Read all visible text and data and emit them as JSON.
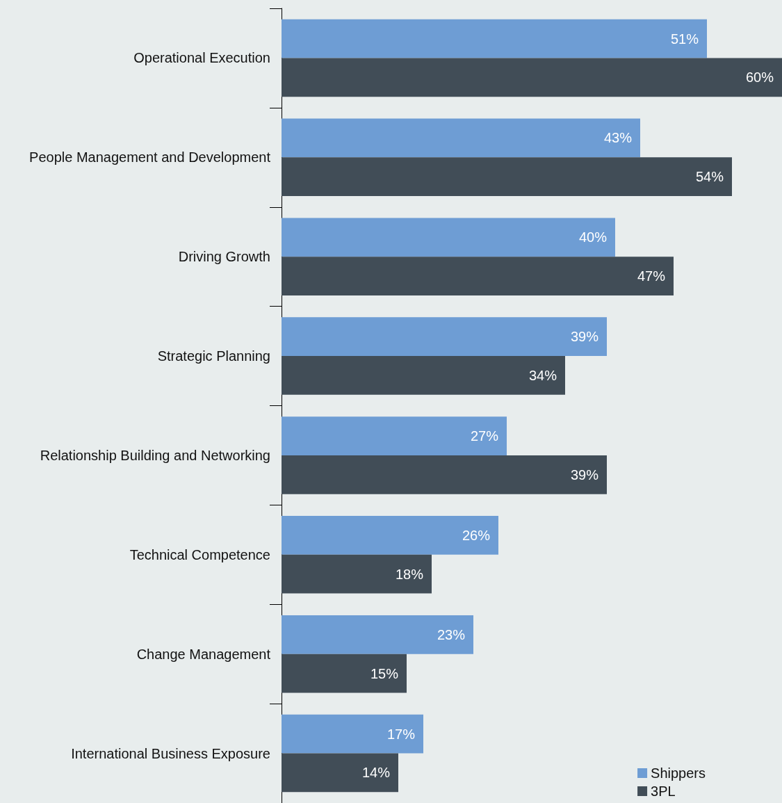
{
  "chart_data": {
    "type": "bar",
    "orientation": "horizontal",
    "legend": "bottom right",
    "categories": [
      "Operational Execution",
      "People Management and Development",
      "Driving Growth",
      "Strategic Planning",
      "Relationship Building and Networking",
      "Technical Competence",
      "Change Management",
      "International Business Exposure"
    ],
    "series": [
      {
        "name": "Shippers",
        "color": "#6e9dd4",
        "values": [
          51,
          43,
          40,
          39,
          27,
          26,
          23,
          17
        ],
        "value_labels": [
          "51%",
          "43%",
          "40%",
          "39%",
          "27%",
          "26%",
          "23%",
          "17%"
        ]
      },
      {
        "name": "3PL",
        "color": "#414d57",
        "values": [
          60,
          54,
          47,
          34,
          39,
          18,
          15,
          14
        ],
        "value_labels": [
          "60%",
          "54%",
          "47%",
          "34%",
          "39%",
          "18%",
          "15%",
          "14%"
        ]
      }
    ]
  }
}
